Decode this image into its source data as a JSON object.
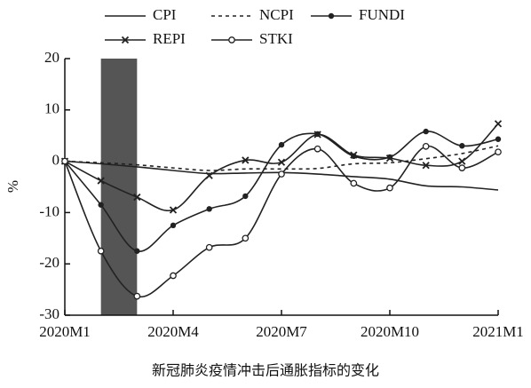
{
  "chart_data": {
    "type": "line",
    "caption": "新冠肺炎疫情冲击后通胀指标的变化",
    "y_label": "%",
    "categories": [
      "2020M1",
      null,
      null,
      "2020M4",
      null,
      null,
      "2020M7",
      null,
      null,
      "2020M10",
      null,
      null,
      "2021M1"
    ],
    "highlight_range": [
      1,
      2
    ],
    "highlight_color": "#555555",
    "ylim": [
      -30,
      20
    ],
    "yticks": [
      -30,
      -20,
      -10,
      0,
      10,
      20
    ],
    "series": [
      {
        "name": "CPI",
        "color": "#222222",
        "dash": false,
        "marker": "none",
        "values": [
          0,
          -0.5,
          -1.1,
          -1.8,
          -2.4,
          -2.3,
          -2.2,
          -2.5,
          -3,
          -3.5,
          -4.8,
          -5,
          -5.6
        ]
      },
      {
        "name": "NCPI",
        "color": "#222222",
        "dash": true,
        "marker": "none",
        "values": [
          0,
          -0.3,
          -0.7,
          -1.3,
          -1.8,
          -1.5,
          -1.5,
          -1.4,
          -0.5,
          -0.3,
          0.5,
          1.5,
          3
        ]
      },
      {
        "name": "FUNDI",
        "color": "#222222",
        "dash": false,
        "marker": "filled-circle",
        "values": [
          0,
          -8.5,
          -17.5,
          -12.5,
          -9.3,
          -6.8,
          3.2,
          5.3,
          1,
          0.8,
          5.8,
          3,
          4.3
        ]
      },
      {
        "name": "REPI",
        "color": "#222222",
        "dash": false,
        "marker": "x",
        "values": [
          0,
          -3.8,
          -7,
          -9.5,
          -2.8,
          0.2,
          -0.2,
          5.2,
          1.2,
          0.6,
          -0.8,
          0,
          7.3
        ]
      },
      {
        "name": "STKI",
        "color": "#222222",
        "dash": false,
        "marker": "open-circle",
        "values": [
          0,
          -17.5,
          -26.3,
          -22.3,
          -16.8,
          -15,
          -2.5,
          2.4,
          -4.3,
          -5.2,
          2.9,
          -1.3,
          1.8
        ]
      }
    ]
  }
}
